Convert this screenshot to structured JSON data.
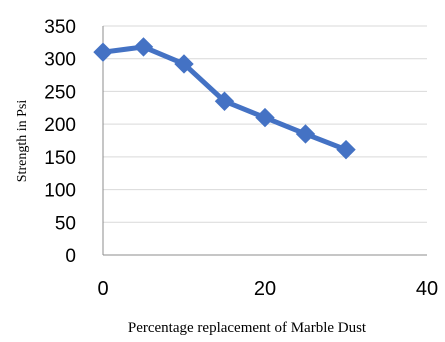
{
  "chart_data": {
    "type": "line",
    "xlabel": "Percentage replacement of Marble Dust",
    "ylabel": "Strength in Psi",
    "xlim": [
      0,
      40
    ],
    "ylim": [
      0,
      350
    ],
    "x_ticks": [
      0,
      20,
      40
    ],
    "y_ticks": [
      0,
      50,
      100,
      150,
      200,
      250,
      300,
      350
    ],
    "grid": "horizontal",
    "legend": "none",
    "line_color": "#4472C4",
    "series": [
      {
        "x": [
          0,
          5,
          10,
          15,
          20,
          25,
          30
        ],
        "values": [
          310,
          318,
          292,
          235,
          210,
          185,
          161
        ]
      }
    ]
  }
}
